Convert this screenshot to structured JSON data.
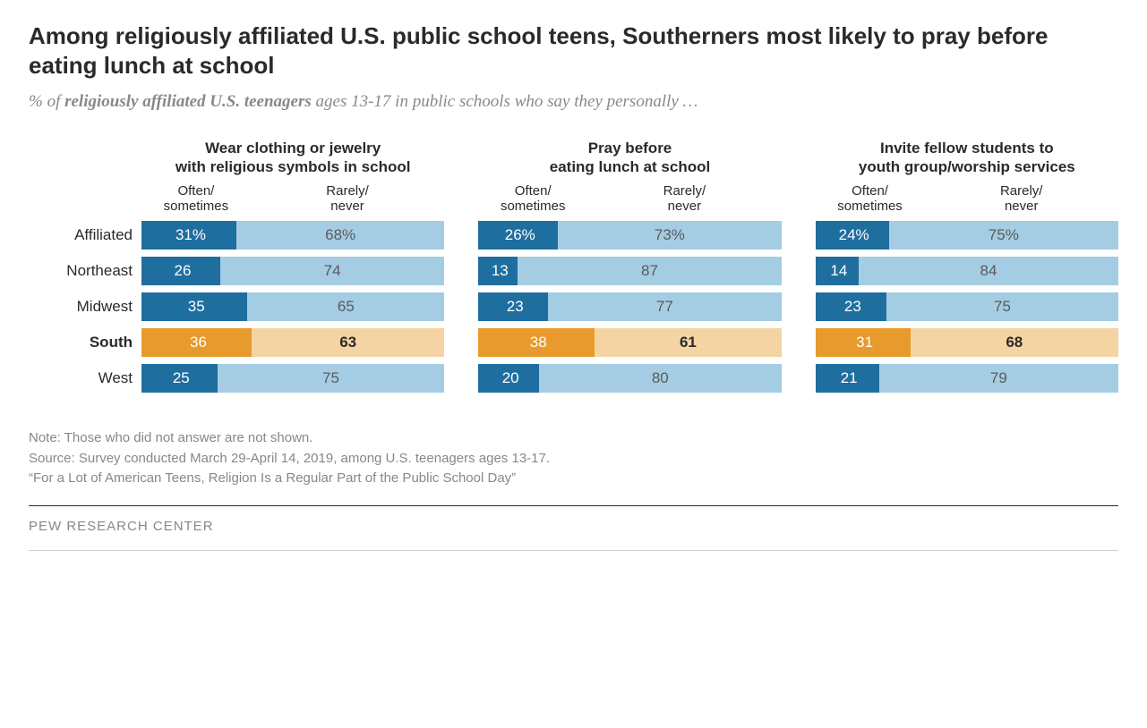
{
  "title": "Among religiously affiliated U.S. public school teens, Southerners most likely to pray before eating lunch at school",
  "subtitle_lead": "% of ",
  "subtitle_strong": "religiously affiliated U.S. teenagers",
  "subtitle_tail": " ages 13-17 in public schools who say they personally …",
  "colors": {
    "primary_dark": "#1f6ea0",
    "primary_light": "#a4cde4",
    "highlight_dark": "#e89a2c",
    "highlight_light": "#f4d4a3",
    "text_on_light": "#5a5a5a",
    "text_on_light_bold": "#2a2a2a"
  },
  "row_labels": [
    "Affiliated",
    "Northeast",
    "Midwest",
    "South",
    "West"
  ],
  "highlight_index": 3,
  "legend": {
    "left": "Often/\nsometimes",
    "right": "Rarely/\nnever"
  },
  "columns": [
    {
      "title": "Wear clothing or jewelry\nwith religious symbols in school",
      "rows": [
        {
          "often": 31,
          "rarely": 68,
          "pct_often": "31%",
          "pct_rarely": "68%"
        },
        {
          "often": 26,
          "rarely": 74,
          "pct_often": "26",
          "pct_rarely": "74"
        },
        {
          "often": 35,
          "rarely": 65,
          "pct_often": "35",
          "pct_rarely": "65"
        },
        {
          "often": 36,
          "rarely": 63,
          "pct_often": "36",
          "pct_rarely": "63"
        },
        {
          "often": 25,
          "rarely": 75,
          "pct_often": "25",
          "pct_rarely": "75"
        }
      ]
    },
    {
      "title": "Pray before\neating lunch at school",
      "rows": [
        {
          "often": 26,
          "rarely": 73,
          "pct_often": "26%",
          "pct_rarely": "73%"
        },
        {
          "often": 13,
          "rarely": 87,
          "pct_often": "13",
          "pct_rarely": "87"
        },
        {
          "often": 23,
          "rarely": 77,
          "pct_often": "23",
          "pct_rarely": "77"
        },
        {
          "often": 38,
          "rarely": 61,
          "pct_often": "38",
          "pct_rarely": "61"
        },
        {
          "often": 20,
          "rarely": 80,
          "pct_often": "20",
          "pct_rarely": "80"
        }
      ]
    },
    {
      "title": "Invite fellow students to\nyouth group/worship services",
      "rows": [
        {
          "often": 24,
          "rarely": 75,
          "pct_often": "24%",
          "pct_rarely": "75%"
        },
        {
          "often": 14,
          "rarely": 84,
          "pct_often": "14",
          "pct_rarely": "84"
        },
        {
          "often": 23,
          "rarely": 75,
          "pct_often": "23",
          "pct_rarely": "75"
        },
        {
          "often": 31,
          "rarely": 68,
          "pct_often": "31",
          "pct_rarely": "68"
        },
        {
          "often": 21,
          "rarely": 79,
          "pct_often": "21",
          "pct_rarely": "79"
        }
      ]
    }
  ],
  "note1": "Note: Those who did not answer are not shown.",
  "note2": "Source: Survey conducted March 29-April 14, 2019, among U.S. teenagers ages 13-17.",
  "note3": "“For a Lot of American Teens, Religion Is a Regular Part of the Public School Day”",
  "org": "PEW RESEARCH CENTER"
}
